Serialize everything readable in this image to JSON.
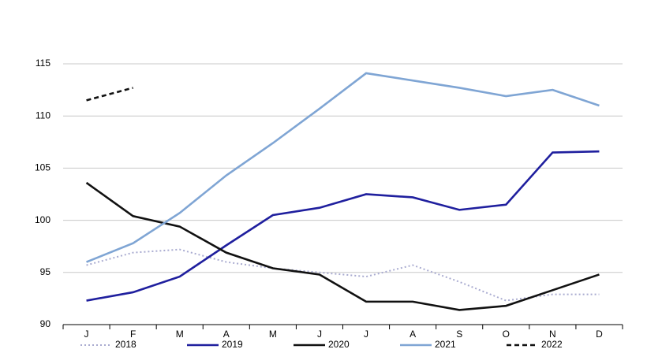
{
  "chart_data": {
    "type": "line",
    "categories": [
      "J",
      "F",
      "M",
      "A",
      "M",
      "J",
      "J",
      "A",
      "S",
      "O",
      "N",
      "D"
    ],
    "ylim": [
      90,
      115
    ],
    "yticks": [
      90,
      95,
      100,
      105,
      110,
      115
    ],
    "grid": true,
    "legend": "bottom",
    "series": [
      {
        "name": "2018",
        "color": "#a9abd0",
        "style": "dotted",
        "values": [
          95.7,
          96.9,
          97.2,
          96.0,
          95.4,
          95.0,
          94.6,
          95.7,
          94.1,
          92.3,
          92.9,
          92.9
        ]
      },
      {
        "name": "2019",
        "color": "#1f1f9e",
        "style": "solid",
        "values": [
          92.3,
          93.1,
          94.6,
          97.6,
          100.5,
          101.2,
          102.5,
          102.2,
          101.0,
          101.5,
          106.5,
          106.6
        ]
      },
      {
        "name": "2020",
        "color": "#111111",
        "style": "solid",
        "values": [
          103.6,
          100.4,
          99.4,
          96.9,
          95.4,
          94.8,
          92.2,
          92.2,
          91.4,
          91.8,
          93.3,
          94.8
        ]
      },
      {
        "name": "2021",
        "color": "#7fa5d4",
        "style": "solid",
        "values": [
          96.0,
          97.8,
          100.7,
          104.3,
          107.4,
          110.7,
          114.1,
          113.4,
          112.7,
          111.9,
          112.5,
          111.0
        ]
      },
      {
        "name": "2022",
        "color": "#111111",
        "style": "dashed",
        "values": [
          111.5,
          112.7,
          null,
          null,
          null,
          null,
          null,
          null,
          null,
          null,
          null,
          null
        ]
      }
    ]
  }
}
